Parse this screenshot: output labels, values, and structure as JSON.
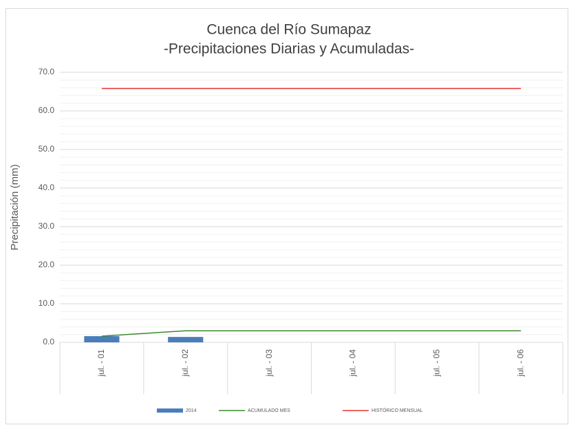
{
  "chart_data": {
    "type": "bar",
    "title": "Cuenca del Río Sumapaz",
    "subtitle": "-Precipitaciones Diarias y Acumuladas-",
    "y_label": "Precipitación (mm)",
    "categories": [
      "jul. - 01",
      "jul. - 02",
      "jul. - 03",
      "jul. - 04",
      "jul. - 05",
      "jul. - 06"
    ],
    "series": [
      {
        "name": "2014",
        "type": "bar",
        "color": "#4a7ebb",
        "values": [
          1.6,
          1.4,
          null,
          null,
          null,
          null
        ]
      },
      {
        "name": "ACUMULADO MES",
        "type": "line",
        "color": "#3a8a2a",
        "values": [
          1.6,
          3.0,
          3.0,
          3.0,
          3.0,
          3.0
        ]
      },
      {
        "name": "HISTÓRICO MENSUAL",
        "type": "line",
        "color": "#e8322e",
        "values": [
          65.8,
          65.8,
          65.8,
          65.8,
          65.8,
          65.8
        ]
      }
    ],
    "ylim": [
      0,
      70
    ],
    "yticks": [
      {
        "value": 0,
        "label": "0.0"
      },
      {
        "value": 10,
        "label": "10.0"
      },
      {
        "value": 20,
        "label": "20.0"
      },
      {
        "value": 30,
        "label": "30.0"
      },
      {
        "value": 40,
        "label": "40.0"
      },
      {
        "value": 50,
        "label": "50.0"
      },
      {
        "value": 60,
        "label": "60.0"
      },
      {
        "value": 70,
        "label": "70.0"
      }
    ],
    "minor_yticks": [
      2,
      4,
      6,
      8,
      12,
      14,
      16,
      18,
      22,
      24,
      26,
      28,
      32,
      34,
      36,
      38,
      42,
      44,
      46,
      48,
      52,
      54,
      56,
      58,
      62,
      64,
      66,
      68
    ],
    "grid": true,
    "legend": "bottom"
  }
}
